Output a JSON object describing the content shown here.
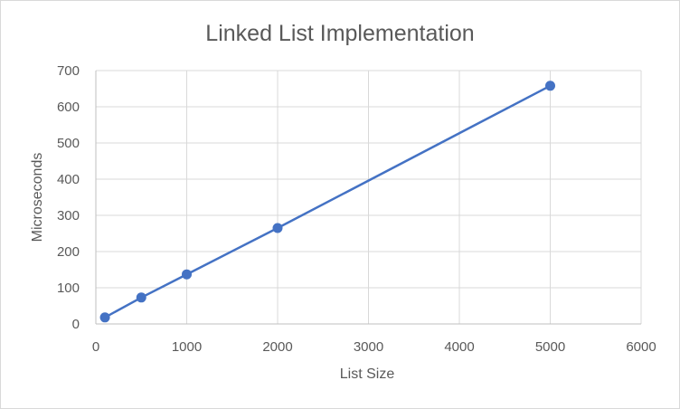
{
  "chart_data": {
    "type": "scatter",
    "title": "Linked List Implementation",
    "xlabel": "List Size",
    "ylabel": "Microseconds",
    "xlim": [
      0,
      6000
    ],
    "ylim": [
      0,
      700
    ],
    "xticks": [
      0,
      1000,
      2000,
      3000,
      4000,
      5000,
      6000
    ],
    "yticks": [
      0,
      100,
      200,
      300,
      400,
      500,
      600,
      700
    ],
    "grid": true,
    "legend": "none",
    "series": [
      {
        "color": "#4472c4",
        "style": "line-with-markers",
        "x": [
          100,
          500,
          1000,
          2000,
          5000
        ],
        "y": [
          18,
          73,
          137,
          265,
          658
        ]
      }
    ]
  }
}
